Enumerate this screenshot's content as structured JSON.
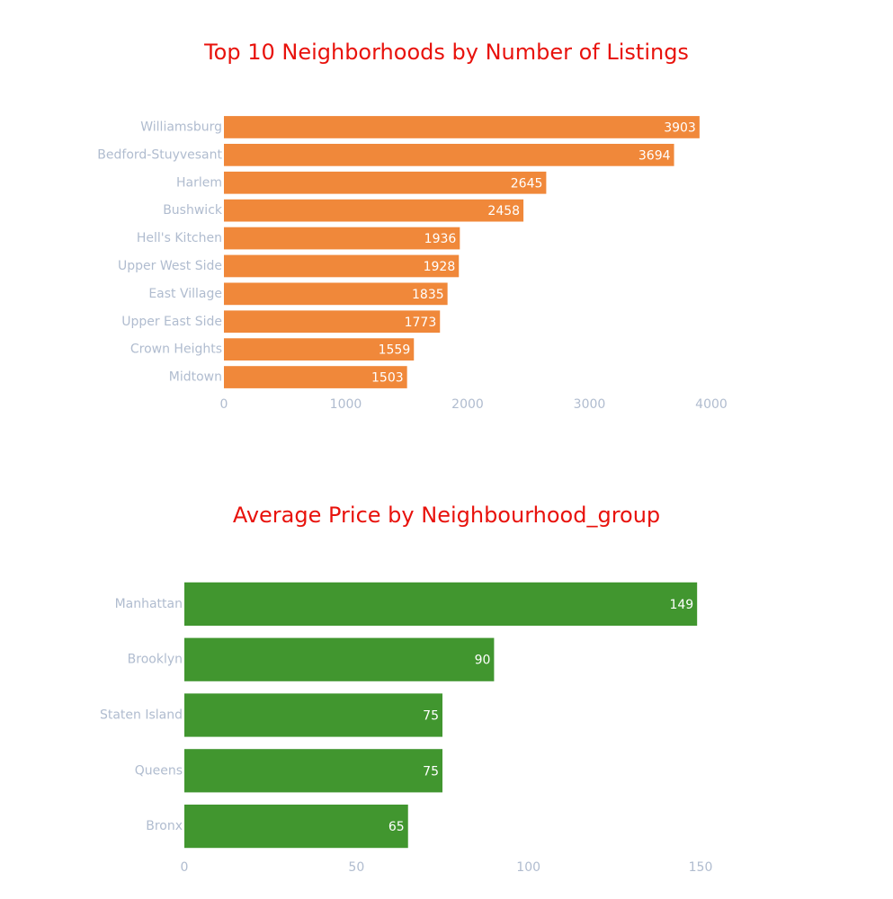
{
  "chart_data": [
    {
      "type": "bar",
      "orientation": "horizontal",
      "title": "Top 10 Neighborhoods by Number of Listings",
      "categories": [
        "Williamsburg",
        "Bedford-Stuyvesant",
        "Harlem",
        "Bushwick",
        "Hell's Kitchen",
        "Upper West Side",
        "East Village",
        "Upper East Side",
        "Crown Heights",
        "Midtown"
      ],
      "values": [
        3903,
        3694,
        2645,
        2458,
        1936,
        1928,
        1835,
        1773,
        1559,
        1503
      ],
      "xticks": [
        "0",
        "1000",
        "2000",
        "3000",
        "4000"
      ],
      "xlim": [
        0,
        4000
      ],
      "color": "#f0883a",
      "grid": false
    },
    {
      "type": "bar",
      "orientation": "horizontal",
      "title": "Average Price by Neighbourhood_group",
      "categories": [
        "Manhattan",
        "Brooklyn",
        "Staten Island",
        "Queens",
        "Bronx"
      ],
      "values": [
        149,
        90,
        75,
        75,
        65
      ],
      "xticks": [
        "0",
        "50",
        "100",
        "150"
      ],
      "xlim": [
        0,
        150
      ],
      "color": "#41962f",
      "grid": false
    }
  ]
}
